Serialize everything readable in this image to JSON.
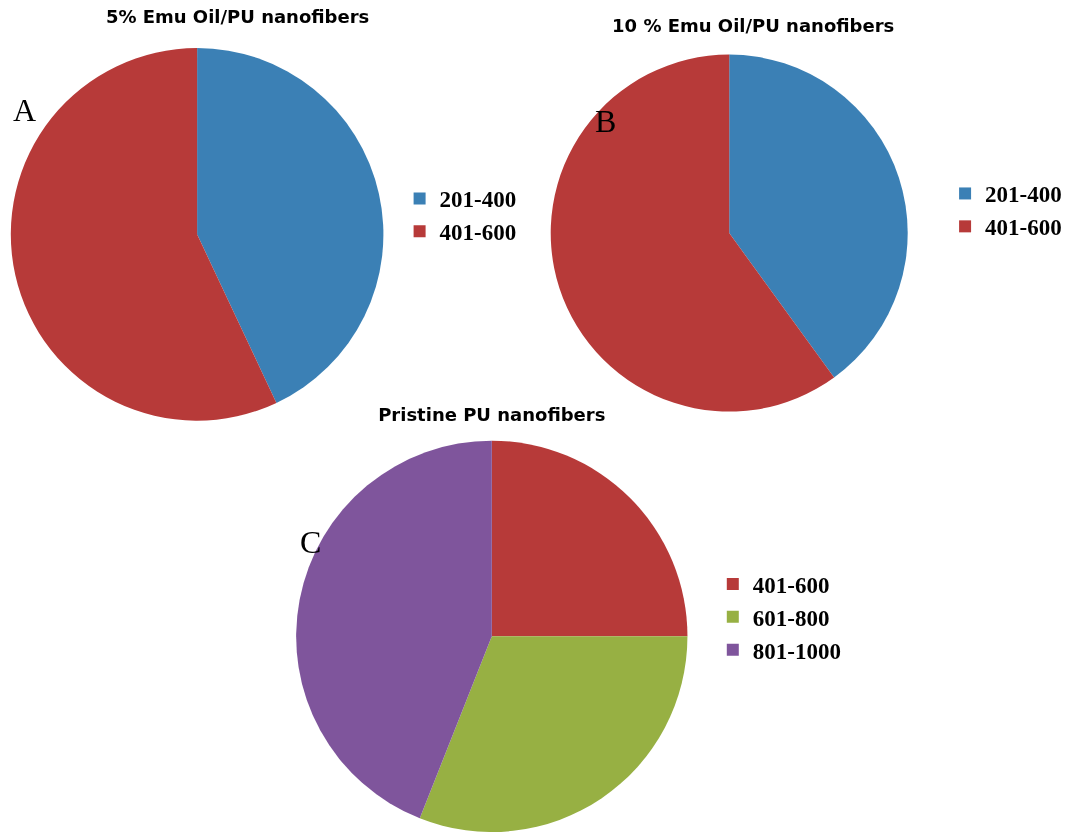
{
  "chart_data": [
    {
      "type": "pie",
      "title": "5% Emu Oil/PU nanofibers",
      "categories": [
        "201-400",
        "401-600"
      ],
      "values": [
        43,
        57
      ],
      "colors": [
        "#3b80b5",
        "#b73a39"
      ],
      "legend": "right",
      "annotations": [
        "A"
      ]
    },
    {
      "type": "pie",
      "title": "10 % Emu Oil/PU nanofibers",
      "categories": [
        "201-400",
        "401-600"
      ],
      "values": [
        40,
        60
      ],
      "colors": [
        "#3b80b5",
        "#b73a39"
      ],
      "legend": "right",
      "annotations": [
        "B"
      ]
    },
    {
      "type": "pie",
      "title": "Pristine PU nanofibers",
      "categories": [
        "401-600",
        "601-800",
        "801-1000"
      ],
      "values": [
        25,
        31,
        44
      ],
      "colors": [
        "#b73a39",
        "#97b043",
        "#7f559c"
      ],
      "legend": "right",
      "annotations": [
        "C"
      ]
    }
  ]
}
